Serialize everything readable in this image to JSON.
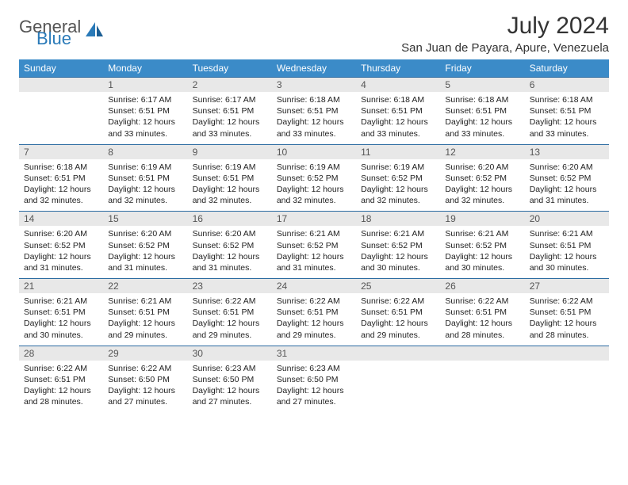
{
  "brand": {
    "part1": "General",
    "part2": "Blue"
  },
  "title": "July 2024",
  "location": "San Juan de Payara, Apure, Venezuela",
  "colors": {
    "header_bg": "#3b8bc8",
    "header_text": "#ffffff",
    "daynum_bg": "#e8e8e8",
    "daynum_text": "#555555",
    "border": "#2a6aa0",
    "body_text": "#222222",
    "brand_gray": "#555555",
    "brand_blue": "#2a7ab8"
  },
  "weekdays": [
    "Sunday",
    "Monday",
    "Tuesday",
    "Wednesday",
    "Thursday",
    "Friday",
    "Saturday"
  ],
  "weeks": [
    {
      "nums": [
        "",
        "1",
        "2",
        "3",
        "4",
        "5",
        "6"
      ],
      "cells": [
        null,
        {
          "sunrise": "Sunrise: 6:17 AM",
          "sunset": "Sunset: 6:51 PM",
          "dl1": "Daylight: 12 hours",
          "dl2": "and 33 minutes."
        },
        {
          "sunrise": "Sunrise: 6:17 AM",
          "sunset": "Sunset: 6:51 PM",
          "dl1": "Daylight: 12 hours",
          "dl2": "and 33 minutes."
        },
        {
          "sunrise": "Sunrise: 6:18 AM",
          "sunset": "Sunset: 6:51 PM",
          "dl1": "Daylight: 12 hours",
          "dl2": "and 33 minutes."
        },
        {
          "sunrise": "Sunrise: 6:18 AM",
          "sunset": "Sunset: 6:51 PM",
          "dl1": "Daylight: 12 hours",
          "dl2": "and 33 minutes."
        },
        {
          "sunrise": "Sunrise: 6:18 AM",
          "sunset": "Sunset: 6:51 PM",
          "dl1": "Daylight: 12 hours",
          "dl2": "and 33 minutes."
        },
        {
          "sunrise": "Sunrise: 6:18 AM",
          "sunset": "Sunset: 6:51 PM",
          "dl1": "Daylight: 12 hours",
          "dl2": "and 33 minutes."
        }
      ]
    },
    {
      "nums": [
        "7",
        "8",
        "9",
        "10",
        "11",
        "12",
        "13"
      ],
      "cells": [
        {
          "sunrise": "Sunrise: 6:18 AM",
          "sunset": "Sunset: 6:51 PM",
          "dl1": "Daylight: 12 hours",
          "dl2": "and 32 minutes."
        },
        {
          "sunrise": "Sunrise: 6:19 AM",
          "sunset": "Sunset: 6:51 PM",
          "dl1": "Daylight: 12 hours",
          "dl2": "and 32 minutes."
        },
        {
          "sunrise": "Sunrise: 6:19 AM",
          "sunset": "Sunset: 6:51 PM",
          "dl1": "Daylight: 12 hours",
          "dl2": "and 32 minutes."
        },
        {
          "sunrise": "Sunrise: 6:19 AM",
          "sunset": "Sunset: 6:52 PM",
          "dl1": "Daylight: 12 hours",
          "dl2": "and 32 minutes."
        },
        {
          "sunrise": "Sunrise: 6:19 AM",
          "sunset": "Sunset: 6:52 PM",
          "dl1": "Daylight: 12 hours",
          "dl2": "and 32 minutes."
        },
        {
          "sunrise": "Sunrise: 6:20 AM",
          "sunset": "Sunset: 6:52 PM",
          "dl1": "Daylight: 12 hours",
          "dl2": "and 32 minutes."
        },
        {
          "sunrise": "Sunrise: 6:20 AM",
          "sunset": "Sunset: 6:52 PM",
          "dl1": "Daylight: 12 hours",
          "dl2": "and 31 minutes."
        }
      ]
    },
    {
      "nums": [
        "14",
        "15",
        "16",
        "17",
        "18",
        "19",
        "20"
      ],
      "cells": [
        {
          "sunrise": "Sunrise: 6:20 AM",
          "sunset": "Sunset: 6:52 PM",
          "dl1": "Daylight: 12 hours",
          "dl2": "and 31 minutes."
        },
        {
          "sunrise": "Sunrise: 6:20 AM",
          "sunset": "Sunset: 6:52 PM",
          "dl1": "Daylight: 12 hours",
          "dl2": "and 31 minutes."
        },
        {
          "sunrise": "Sunrise: 6:20 AM",
          "sunset": "Sunset: 6:52 PM",
          "dl1": "Daylight: 12 hours",
          "dl2": "and 31 minutes."
        },
        {
          "sunrise": "Sunrise: 6:21 AM",
          "sunset": "Sunset: 6:52 PM",
          "dl1": "Daylight: 12 hours",
          "dl2": "and 31 minutes."
        },
        {
          "sunrise": "Sunrise: 6:21 AM",
          "sunset": "Sunset: 6:52 PM",
          "dl1": "Daylight: 12 hours",
          "dl2": "and 30 minutes."
        },
        {
          "sunrise": "Sunrise: 6:21 AM",
          "sunset": "Sunset: 6:52 PM",
          "dl1": "Daylight: 12 hours",
          "dl2": "and 30 minutes."
        },
        {
          "sunrise": "Sunrise: 6:21 AM",
          "sunset": "Sunset: 6:51 PM",
          "dl1": "Daylight: 12 hours",
          "dl2": "and 30 minutes."
        }
      ]
    },
    {
      "nums": [
        "21",
        "22",
        "23",
        "24",
        "25",
        "26",
        "27"
      ],
      "cells": [
        {
          "sunrise": "Sunrise: 6:21 AM",
          "sunset": "Sunset: 6:51 PM",
          "dl1": "Daylight: 12 hours",
          "dl2": "and 30 minutes."
        },
        {
          "sunrise": "Sunrise: 6:21 AM",
          "sunset": "Sunset: 6:51 PM",
          "dl1": "Daylight: 12 hours",
          "dl2": "and 29 minutes."
        },
        {
          "sunrise": "Sunrise: 6:22 AM",
          "sunset": "Sunset: 6:51 PM",
          "dl1": "Daylight: 12 hours",
          "dl2": "and 29 minutes."
        },
        {
          "sunrise": "Sunrise: 6:22 AM",
          "sunset": "Sunset: 6:51 PM",
          "dl1": "Daylight: 12 hours",
          "dl2": "and 29 minutes."
        },
        {
          "sunrise": "Sunrise: 6:22 AM",
          "sunset": "Sunset: 6:51 PM",
          "dl1": "Daylight: 12 hours",
          "dl2": "and 29 minutes."
        },
        {
          "sunrise": "Sunrise: 6:22 AM",
          "sunset": "Sunset: 6:51 PM",
          "dl1": "Daylight: 12 hours",
          "dl2": "and 28 minutes."
        },
        {
          "sunrise": "Sunrise: 6:22 AM",
          "sunset": "Sunset: 6:51 PM",
          "dl1": "Daylight: 12 hours",
          "dl2": "and 28 minutes."
        }
      ]
    },
    {
      "nums": [
        "28",
        "29",
        "30",
        "31",
        "",
        "",
        ""
      ],
      "cells": [
        {
          "sunrise": "Sunrise: 6:22 AM",
          "sunset": "Sunset: 6:51 PM",
          "dl1": "Daylight: 12 hours",
          "dl2": "and 28 minutes."
        },
        {
          "sunrise": "Sunrise: 6:22 AM",
          "sunset": "Sunset: 6:50 PM",
          "dl1": "Daylight: 12 hours",
          "dl2": "and 27 minutes."
        },
        {
          "sunrise": "Sunrise: 6:23 AM",
          "sunset": "Sunset: 6:50 PM",
          "dl1": "Daylight: 12 hours",
          "dl2": "and 27 minutes."
        },
        {
          "sunrise": "Sunrise: 6:23 AM",
          "sunset": "Sunset: 6:50 PM",
          "dl1": "Daylight: 12 hours",
          "dl2": "and 27 minutes."
        },
        null,
        null,
        null
      ]
    }
  ]
}
